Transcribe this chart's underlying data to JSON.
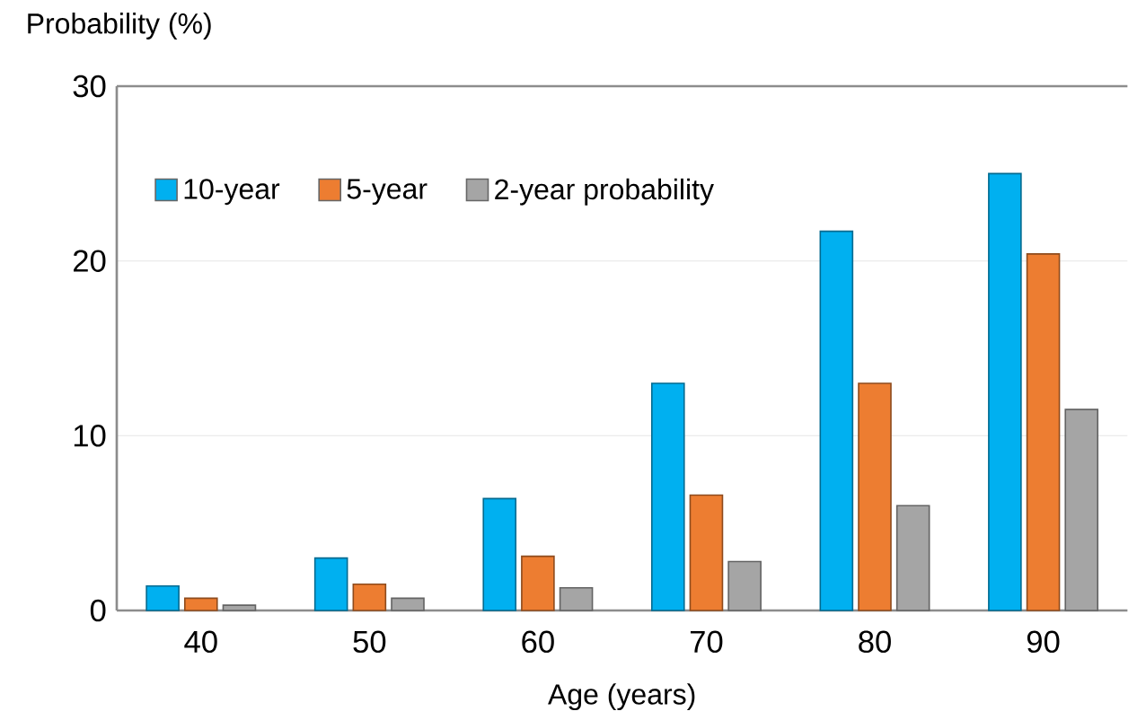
{
  "chart_data": {
    "type": "bar",
    "xlabel": "Age (years)",
    "ylabel": "Probability (%)",
    "categories": [
      "40",
      "50",
      "60",
      "70",
      "80",
      "90"
    ],
    "series": [
      {
        "name": "10-year",
        "color": "#00b0f0",
        "values": [
          1.4,
          3.0,
          6.4,
          13.0,
          21.7,
          25.0
        ]
      },
      {
        "name": "5-year",
        "color": "#ed7d31",
        "values": [
          0.7,
          1.5,
          3.1,
          6.6,
          13.0,
          20.4
        ]
      },
      {
        "name": "2-year probability",
        "color": "#a5a5a5",
        "values": [
          0.3,
          0.7,
          1.3,
          2.8,
          6.0,
          11.5
        ]
      }
    ],
    "ylim": [
      0,
      30
    ],
    "yticks": [
      0,
      10,
      20,
      30
    ],
    "grid": "y",
    "legend": "top left"
  }
}
